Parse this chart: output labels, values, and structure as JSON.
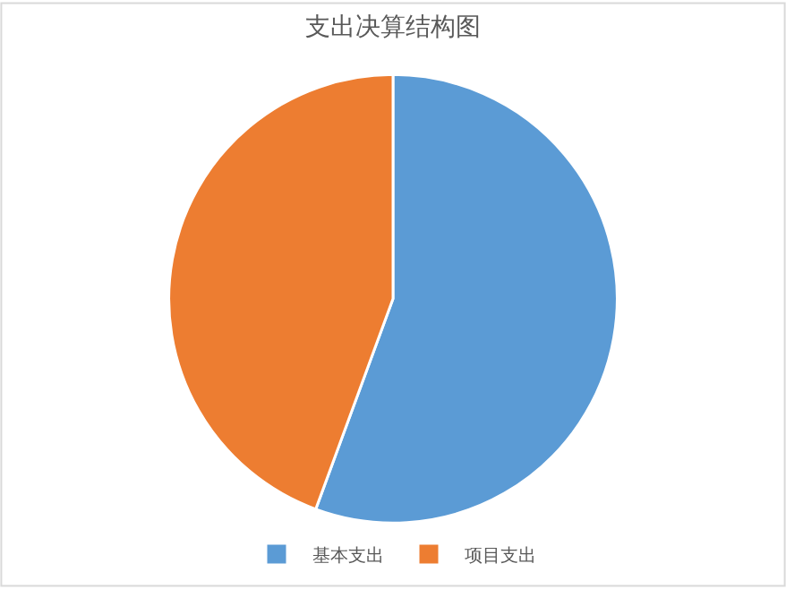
{
  "chart_data": {
    "type": "pie",
    "title": "支出决算结构图",
    "categories": [
      "基本支出",
      "项目支出"
    ],
    "values": [
      55.6,
      44.4
    ],
    "colors": [
      "#5b9bd5",
      "#ed7d31"
    ],
    "legend": "bottom"
  }
}
